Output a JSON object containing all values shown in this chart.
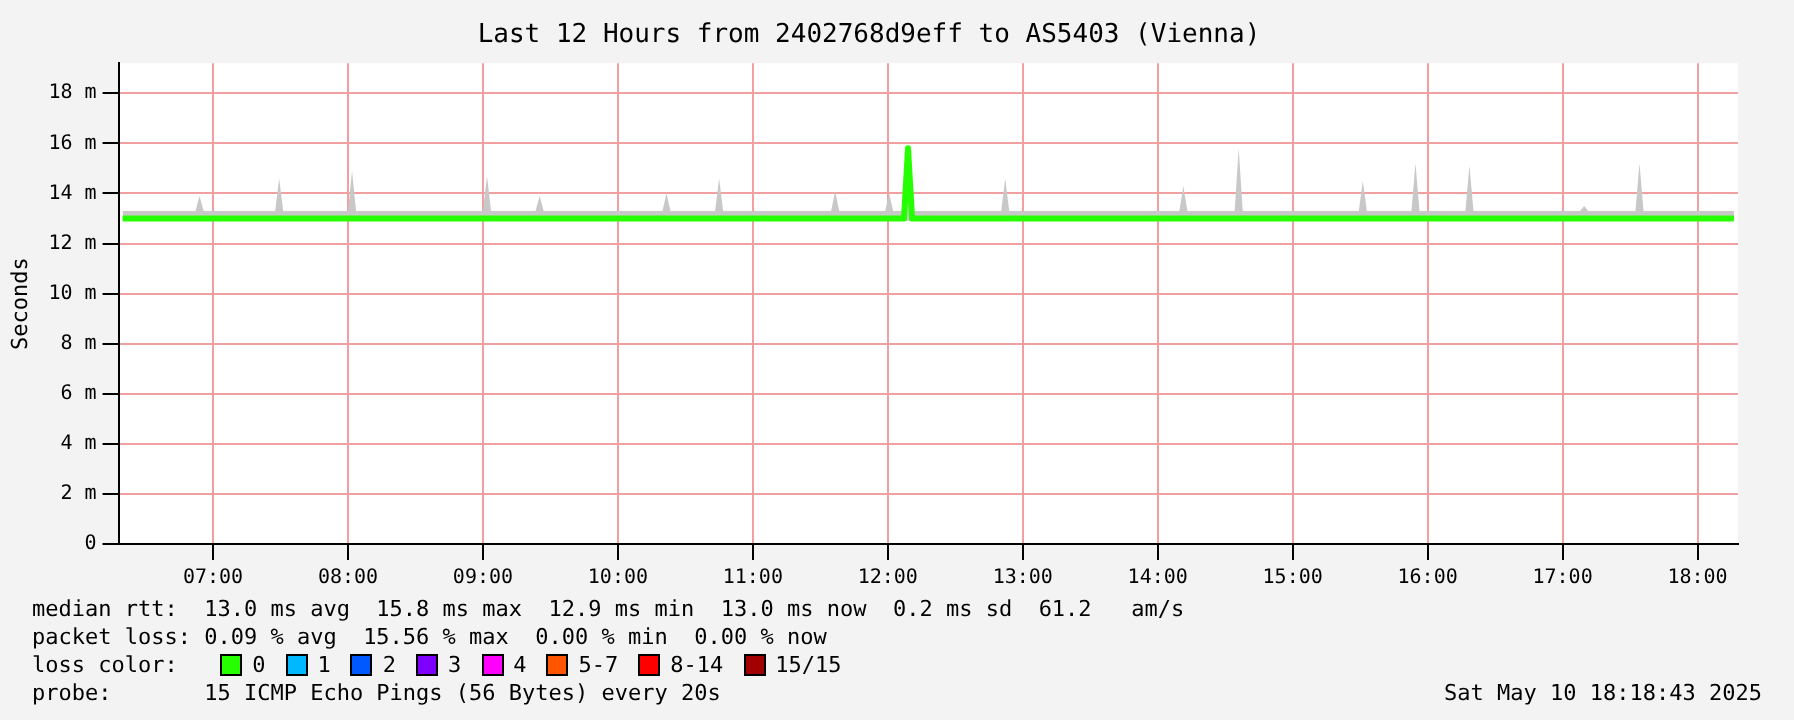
{
  "chart_data": {
    "type": "line",
    "title": "Last 12 Hours from 2402768d9eff to AS5403 (Vienna)",
    "ylabel": "Seconds",
    "x": [
      6.33,
      6.87,
      6.9,
      6.93,
      7.46,
      7.49,
      7.52,
      8.0,
      8.03,
      8.06,
      9.0,
      9.03,
      9.06,
      9.39,
      9.42,
      9.45,
      10.33,
      10.36,
      10.39,
      10.72,
      10.75,
      10.78,
      11.58,
      11.61,
      11.64,
      11.98,
      12.01,
      12.04,
      12.12,
      12.15,
      12.18,
      12.84,
      12.87,
      12.9,
      14.16,
      14.19,
      14.22,
      14.57,
      14.6,
      14.63,
      15.49,
      15.52,
      15.55,
      15.88,
      15.91,
      15.94,
      16.28,
      16.31,
      16.34,
      17.13,
      17.16,
      17.19,
      17.54,
      17.57,
      17.6,
      18.27
    ],
    "series": [
      {
        "name": "0",
        "color": "#26ff00",
        "values": [
          13.0,
          13.0,
          13.0,
          13.0,
          13.0,
          13.0,
          13.0,
          13.0,
          13.0,
          13.0,
          13.0,
          13.0,
          13.0,
          13.0,
          13.0,
          13.0,
          13.0,
          13.0,
          13.0,
          13.0,
          13.0,
          13.0,
          13.0,
          13.0,
          13.0,
          13.0,
          13.0,
          13.0,
          13.0,
          15.8,
          13.0,
          13.0,
          13.0,
          13.0,
          13.0,
          13.0,
          13.0,
          13.0,
          13.0,
          13.0,
          13.0,
          13.0,
          13.0,
          13.0,
          13.0,
          13.0,
          13.0,
          13.0,
          13.0,
          13.0,
          13.0,
          13.0,
          13.0,
          13.0,
          13.0,
          13.0
        ],
        "lower": [
          12.9,
          12.9,
          12.9,
          12.9,
          12.9,
          12.9,
          12.9,
          12.9,
          12.9,
          12.9,
          12.9,
          12.9,
          12.9,
          12.9,
          12.9,
          12.9,
          12.9,
          12.9,
          12.9,
          12.9,
          12.9,
          12.9,
          12.9,
          12.9,
          12.9,
          12.9,
          12.9,
          12.9,
          12.9,
          12.9,
          12.9,
          12.9,
          12.9,
          12.9,
          12.9,
          12.9,
          12.9,
          12.9,
          12.9,
          12.9,
          12.9,
          12.9,
          12.9,
          12.9,
          12.9,
          12.9,
          12.9,
          12.9,
          12.9,
          12.9,
          12.9,
          12.9,
          12.9,
          12.9,
          12.9,
          12.9
        ],
        "upper": [
          13.3,
          13.3,
          13.9,
          13.3,
          13.3,
          14.6,
          13.3,
          13.3,
          14.9,
          13.3,
          13.3,
          14.7,
          13.3,
          13.3,
          13.9,
          13.3,
          13.3,
          14.0,
          13.3,
          13.3,
          14.6,
          13.3,
          13.3,
          14.1,
          13.3,
          13.3,
          14.0,
          13.3,
          13.3,
          15.8,
          13.3,
          13.3,
          14.6,
          13.3,
          13.3,
          14.3,
          13.3,
          13.3,
          15.8,
          13.3,
          13.3,
          14.5,
          13.3,
          13.3,
          15.2,
          13.3,
          13.3,
          15.1,
          13.3,
          13.3,
          13.5,
          13.3,
          13.3,
          15.2,
          13.3,
          13.3
        ]
      },
      {
        "name": "1",
        "color": "#00b8ff",
        "values": [
          null,
          null,
          null,
          null,
          null,
          null,
          null,
          null,
          null,
          null,
          null,
          null,
          null,
          null,
          null,
          null,
          null,
          null,
          null,
          null,
          null,
          null,
          null,
          null,
          null,
          null,
          null,
          null,
          null,
          null,
          null,
          null,
          null,
          null,
          null,
          null,
          null,
          null,
          null,
          null,
          null,
          null,
          null,
          null,
          null,
          null,
          null,
          null,
          null,
          null,
          null,
          null,
          null,
          null,
          null,
          null
        ]
      },
      {
        "name": "2",
        "color": "#0059ff",
        "values": [
          null,
          null,
          null,
          null,
          null,
          null,
          null,
          null,
          null,
          null,
          null,
          null,
          null,
          null,
          null,
          null,
          null,
          null,
          null,
          null,
          null,
          null,
          null,
          null,
          null,
          null,
          null,
          null,
          null,
          null,
          null,
          null,
          null,
          null,
          null,
          null,
          null,
          null,
          null,
          null,
          null,
          null,
          null,
          null,
          null,
          null,
          null,
          null,
          null,
          null,
          null,
          null,
          null,
          null,
          null,
          null
        ]
      },
      {
        "name": "3",
        "color": "#7e00ff",
        "values": [
          null,
          null,
          null,
          null,
          null,
          null,
          null,
          null,
          null,
          null,
          null,
          null,
          null,
          null,
          null,
          null,
          null,
          null,
          null,
          null,
          null,
          null,
          null,
          null,
          null,
          null,
          null,
          null,
          null,
          null,
          null,
          null,
          null,
          null,
          null,
          null,
          null,
          null,
          null,
          null,
          null,
          null,
          null,
          null,
          null,
          null,
          null,
          null,
          null,
          null,
          null,
          null,
          null,
          null,
          null,
          null
        ]
      },
      {
        "name": "4",
        "color": "#ff00ff",
        "values": [
          null,
          null,
          null,
          null,
          null,
          null,
          null,
          null,
          null,
          null,
          null,
          null,
          null,
          null,
          null,
          null,
          null,
          null,
          null,
          null,
          null,
          null,
          null,
          null,
          null,
          null,
          null,
          null,
          null,
          null,
          null,
          null,
          null,
          null,
          null,
          null,
          null,
          null,
          null,
          null,
          null,
          null,
          null,
          null,
          null,
          null,
          null,
          null,
          null,
          null,
          null,
          null,
          null,
          null,
          null,
          null
        ]
      },
      {
        "name": "5-7",
        "color": "#ff5500",
        "values": [
          null,
          null,
          null,
          null,
          null,
          null,
          null,
          null,
          null,
          null,
          null,
          null,
          null,
          null,
          null,
          null,
          null,
          null,
          null,
          null,
          null,
          null,
          null,
          null,
          null,
          null,
          null,
          null,
          null,
          null,
          null,
          null,
          null,
          null,
          null,
          null,
          null,
          null,
          null,
          null,
          null,
          null,
          null,
          null,
          null,
          null,
          null,
          null,
          null,
          null,
          null,
          null,
          null,
          null,
          null,
          null
        ]
      },
      {
        "name": "8-14",
        "color": "#ff0000",
        "values": [
          null,
          null,
          null,
          null,
          null,
          null,
          null,
          null,
          null,
          null,
          null,
          null,
          null,
          null,
          null,
          null,
          null,
          null,
          null,
          null,
          null,
          null,
          null,
          null,
          null,
          null,
          null,
          null,
          null,
          null,
          null,
          null,
          null,
          null,
          null,
          null,
          null,
          null,
          null,
          null,
          null,
          null,
          null,
          null,
          null,
          null,
          null,
          null,
          null,
          null,
          null,
          null,
          null,
          null,
          null,
          null
        ]
      },
      {
        "name": "15/15",
        "color": "#a10000",
        "values": [
          null,
          null,
          null,
          null,
          null,
          null,
          null,
          null,
          null,
          null,
          null,
          null,
          null,
          null,
          null,
          null,
          null,
          null,
          null,
          null,
          null,
          null,
          null,
          null,
          null,
          null,
          null,
          null,
          null,
          null,
          null,
          null,
          null,
          null,
          null,
          null,
          null,
          null,
          null,
          null,
          null,
          null,
          null,
          null,
          null,
          null,
          null,
          null,
          null,
          null,
          null,
          null,
          null,
          null,
          null,
          null
        ]
      }
    ],
    "xlim": [
      6.3,
      18.3
    ],
    "xticks": [
      {
        "value": 7,
        "label": "07:00"
      },
      {
        "value": 8,
        "label": "08:00"
      },
      {
        "value": 9,
        "label": "09:00"
      },
      {
        "value": 10,
        "label": "10:00"
      },
      {
        "value": 11,
        "label": "11:00"
      },
      {
        "value": 12,
        "label": "12:00"
      },
      {
        "value": 13,
        "label": "13:00"
      },
      {
        "value": 14,
        "label": "14:00"
      },
      {
        "value": 15,
        "label": "15:00"
      },
      {
        "value": 16,
        "label": "16:00"
      },
      {
        "value": 17,
        "label": "17:00"
      },
      {
        "value": 18,
        "label": "18:00"
      }
    ],
    "ylim": [
      0,
      19.2
    ],
    "yticks": [
      0,
      {
        "value": 2,
        "label": "2 m"
      },
      {
        "value": 4,
        "label": "4 m"
      },
      {
        "value": 6,
        "label": "6 m"
      },
      {
        "value": 8,
        "label": "8 m"
      },
      {
        "value": 10,
        "label": "10 m"
      },
      {
        "value": 12,
        "label": "12 m"
      },
      {
        "value": 14,
        "label": "14 m"
      },
      {
        "value": 16,
        "label": "16 m"
      },
      {
        "value": 18,
        "label": "18 m"
      }
    ],
    "grid": true,
    "legend": "bottom",
    "legend_title": "loss color:",
    "marker": "none",
    "line_style": "solid",
    "annotations": [
      "median rtt:  13.0 ms avg  15.8 ms max  12.9 ms min  13.0 ms now  0.2 ms sd  61.2   am/s",
      "packet loss: 0.09 % avg  15.56 % max  0.00 % min  0.00 % now",
      "probe:       15 ICMP Echo Pings (56 Bytes) every 20s",
      "Sat May 10 18:18:43 2025"
    ]
  }
}
